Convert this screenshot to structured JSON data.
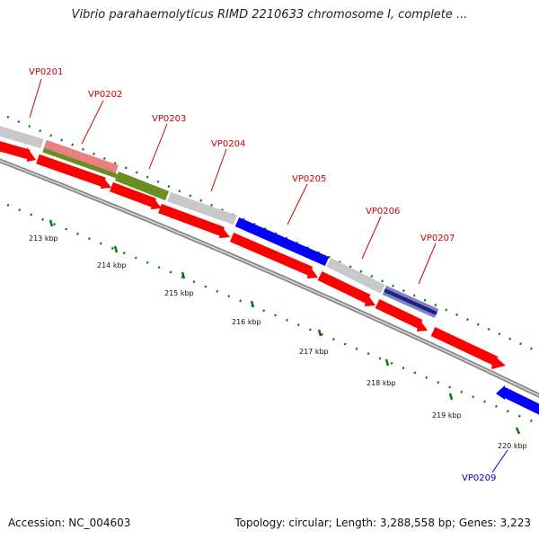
{
  "title": "Vibrio parahaemolyticus RIMD 2210633 chromosome I, complete ...",
  "footer": {
    "accession": "Accession: NC_004603",
    "summary": "Topology: circular; Length: 3,288,558 bp; Genes: 3,223"
  },
  "scale_labels": [
    "213 kbp",
    "214 kbp",
    "215 kbp",
    "216 kbp",
    "217 kbp",
    "218 kbp",
    "219 kbp",
    "220 kbp"
  ],
  "gene_labels": [
    {
      "name": "VP0201",
      "color": "#cc0000"
    },
    {
      "name": "VP0202",
      "color": "#cc0000"
    },
    {
      "name": "VP0203",
      "color": "#cc0000"
    },
    {
      "name": "VP0204",
      "color": "#cc0000"
    },
    {
      "name": "VP0205",
      "color": "#cc0000"
    },
    {
      "name": "VP0206",
      "color": "#cc0000"
    },
    {
      "name": "VP0207",
      "color": "#cc0000"
    },
    {
      "name": "VP0209",
      "color": "#0000cc"
    }
  ],
  "colors": {
    "cds": "#ff0000",
    "gene_blue": "#0000ff",
    "neutral": "#c8c8c8",
    "pink": "#e88080",
    "green": "#6b8e23",
    "navy": "#202080",
    "backbone": "#888888",
    "tick": "#0a7a0a"
  }
}
